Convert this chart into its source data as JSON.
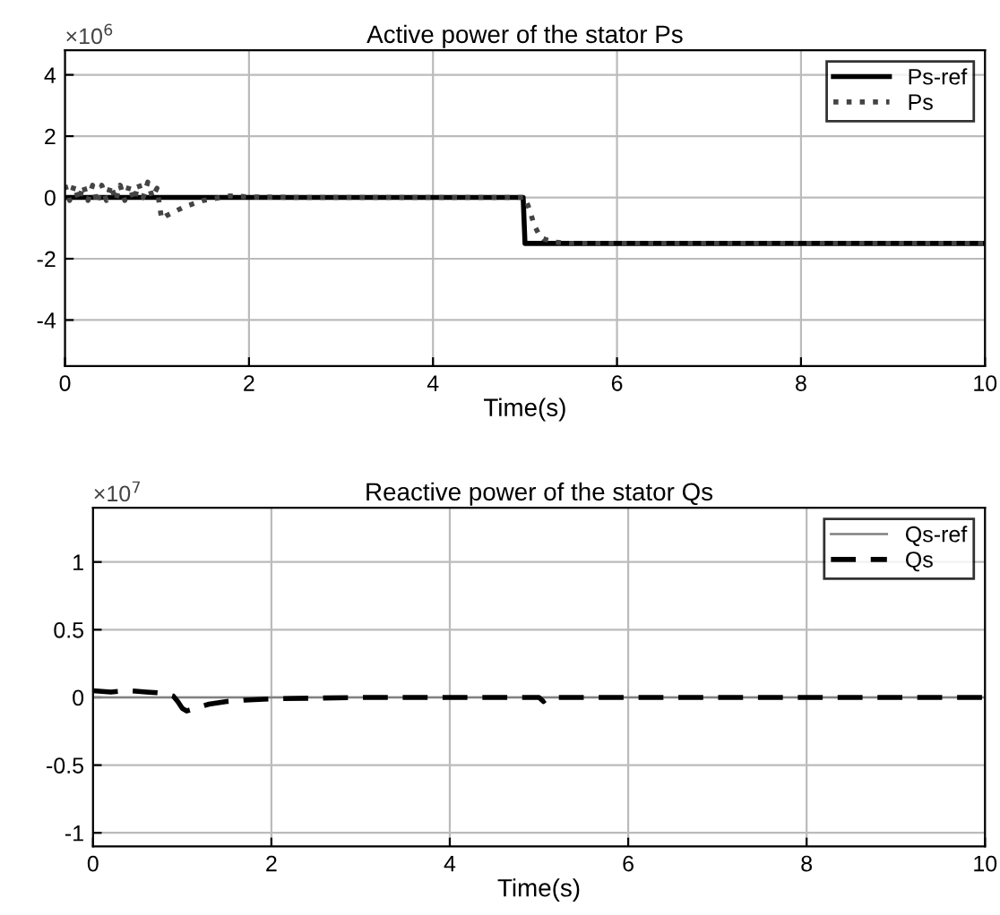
{
  "chart_data": [
    {
      "type": "line",
      "title": "Active power of the stator Ps",
      "xlabel": "Time(s)",
      "annotations": [
        "×10$^{6}$"
      ],
      "xlim": [
        0,
        10
      ],
      "xticks": [
        0,
        2,
        4,
        6,
        8,
        10
      ],
      "ylim": [
        -5.5,
        4.8
      ],
      "yticks": [
        -4,
        -2,
        0,
        2,
        4
      ],
      "grid": true,
      "legend": "top right",
      "series": [
        {
          "name": "Ps-ref",
          "color": "#000000",
          "line_style": "solid",
          "x": [
            0,
            4.98,
            5.0,
            10
          ],
          "values": [
            0,
            0,
            -1.5,
            -1.5
          ]
        },
        {
          "name": "Ps",
          "color": "#444444",
          "line_style": "dotted",
          "x": [
            0,
            0.05,
            0.1,
            0.15,
            0.2,
            0.25,
            0.3,
            0.35,
            0.4,
            0.45,
            0.5,
            0.55,
            0.6,
            0.65,
            0.7,
            0.75,
            0.8,
            0.85,
            0.9,
            0.95,
            1.0,
            1.05,
            1.1,
            1.2,
            1.3,
            1.4,
            1.5,
            1.6,
            1.8,
            2.0,
            2.5,
            3,
            4,
            5.0,
            5.05,
            5.1,
            5.15,
            5.2,
            5.3,
            5.5,
            6,
            10
          ],
          "values": [
            0.4,
            -0.1,
            0.4,
            -0.1,
            0.4,
            -0.1,
            0.4,
            -0.2,
            0.4,
            -0.1,
            0.4,
            -0.1,
            0.4,
            -0.1,
            0.4,
            -0.1,
            0.45,
            0,
            0.5,
            0,
            0.3,
            -0.7,
            -0.6,
            -0.45,
            -0.3,
            -0.2,
            -0.1,
            -0.05,
            0.05,
            0.02,
            0,
            0,
            0,
            0,
            -0.4,
            -0.9,
            -1.2,
            -1.35,
            -1.45,
            -1.5,
            -1.5,
            -1.5
          ]
        }
      ]
    },
    {
      "type": "line",
      "title": "Reactive power of the stator Qs",
      "xlabel": "Time(s)",
      "annotations": [
        "×10$^{7}$"
      ],
      "xlim": [
        0,
        10
      ],
      "xticks": [
        0,
        2,
        4,
        6,
        8,
        10
      ],
      "ylim": [
        -1.1,
        1.4
      ],
      "yticks": [
        -1,
        -0.5,
        0,
        0.5,
        1
      ],
      "grid": true,
      "legend": "top right",
      "series": [
        {
          "name": "Qs-ref",
          "color": "#808080",
          "line_style": "solid",
          "x": [
            0,
            10
          ],
          "values": [
            0,
            0
          ]
        },
        {
          "name": "Qs",
          "color": "#000000",
          "line_style": "dashed",
          "x": [
            0,
            0.2,
            0.4,
            0.6,
            0.8,
            0.9,
            0.95,
            1.0,
            1.05,
            1.1,
            1.2,
            1.3,
            1.4,
            1.5,
            1.7,
            2.0,
            3,
            5.0,
            5.05,
            5.1,
            6,
            10
          ],
          "values": [
            0.05,
            0.04,
            0.05,
            0.04,
            0.03,
            0.01,
            -0.03,
            -0.08,
            -0.1,
            -0.09,
            -0.07,
            -0.05,
            -0.04,
            -0.03,
            -0.02,
            -0.01,
            0,
            0,
            -0.03,
            0,
            0,
            0
          ]
        }
      ]
    }
  ]
}
